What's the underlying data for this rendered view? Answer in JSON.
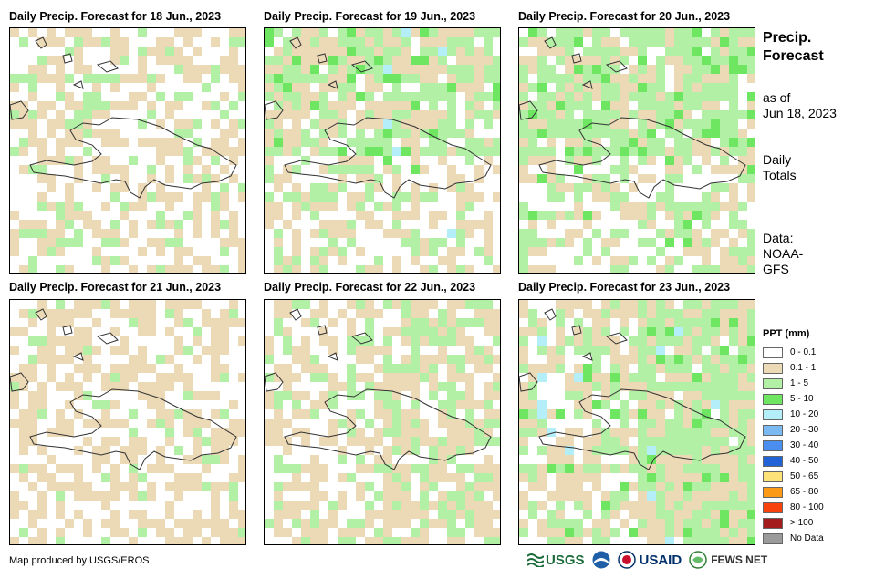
{
  "panels": [
    {
      "title": "Daily Precip. Forecast for 18 Jun., 2023",
      "pattern": 1
    },
    {
      "title": "Daily Precip. Forecast for 19 Jun., 2023",
      "pattern": 2
    },
    {
      "title": "Daily Precip. Forecast for 20 Jun., 2023",
      "pattern": 3
    },
    {
      "title": "Daily Precip. Forecast for 21 Jun., 2023",
      "pattern": 4
    },
    {
      "title": "Daily Precip. Forecast for 22 Jun., 2023",
      "pattern": 5
    },
    {
      "title": "Daily Precip. Forecast for 23 Jun., 2023",
      "pattern": 6
    }
  ],
  "sidebar": {
    "title_line1": "Precip.",
    "title_line2": "Forecast",
    "asof_line1": "as of",
    "asof_line2": "Jun 18, 2023",
    "daily_line1": "Daily",
    "daily_line2": "Totals",
    "data_line1": "Data:",
    "data_line2": "NOAA-",
    "data_line3": "GFS"
  },
  "legend": {
    "title": "PPT (mm)",
    "items": [
      {
        "label": "0 - 0.1",
        "color": "#ffffff"
      },
      {
        "label": "0.1 - 1",
        "color": "#ecd9b6"
      },
      {
        "label": "1 - 5",
        "color": "#b2f0a6"
      },
      {
        "label": "5 - 10",
        "color": "#6ee662"
      },
      {
        "label": "10 - 20",
        "color": "#b4eef8"
      },
      {
        "label": "20 - 30",
        "color": "#7bb9f3"
      },
      {
        "label": "30 - 40",
        "color": "#4a8ef0"
      },
      {
        "label": "40 - 50",
        "color": "#2163d6"
      },
      {
        "label": "50 - 65",
        "color": "#fde27a"
      },
      {
        "label": "65 - 80",
        "color": "#fb9a14"
      },
      {
        "label": "80 - 100",
        "color": "#f7420e"
      },
      {
        "label": "> 100",
        "color": "#a41c1c"
      },
      {
        "label": "No Data",
        "color": "#9b9b9b"
      }
    ]
  },
  "footer": {
    "credit": "Map produced by USGS/EROS",
    "usgs": "USGS",
    "usaid": "USAID",
    "fews": "FEWS NET"
  }
}
